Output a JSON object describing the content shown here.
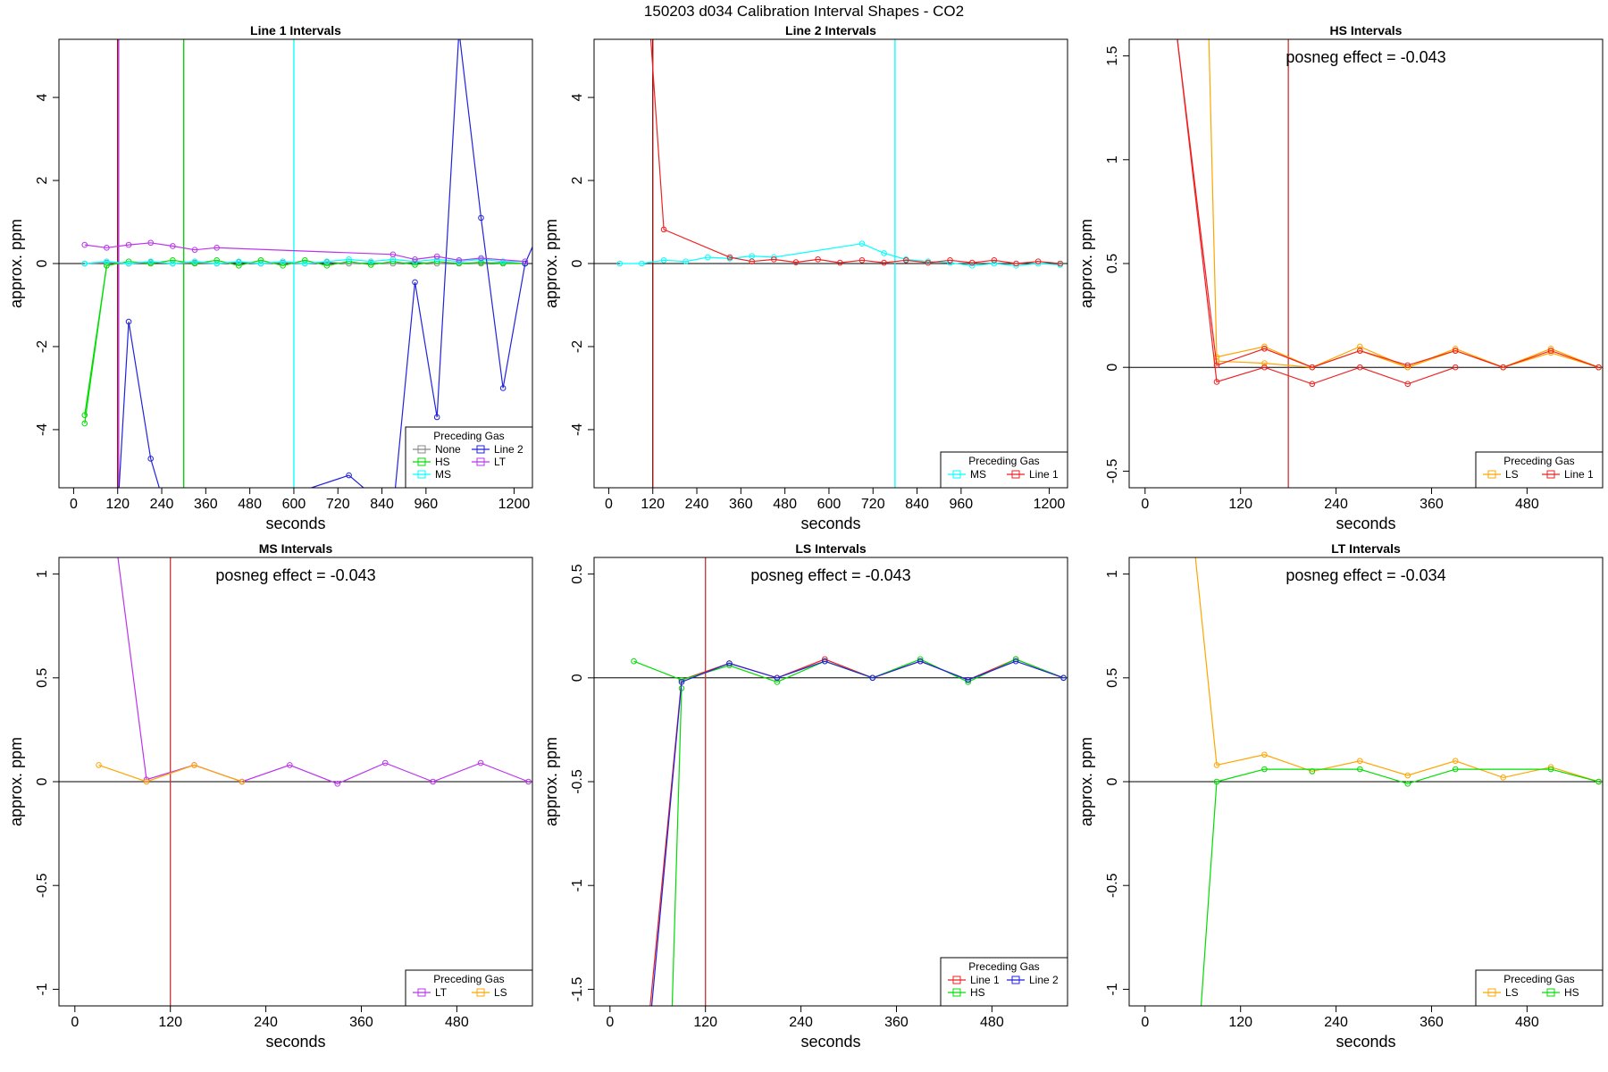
{
  "title": "150203  d034   Calibration Interval Shapes - CO2",
  "chart_data": [
    {
      "type": "line",
      "title": "Line 1 Intervals",
      "xlabel": "seconds",
      "ylabel": "approx. ppm",
      "xlim": [
        -40,
        1250
      ],
      "ylim": [
        -5.4,
        5.4
      ],
      "xticks": [
        0,
        120,
        240,
        360,
        480,
        600,
        720,
        840,
        960,
        1200
      ],
      "yticks": [
        -4,
        -2,
        0,
        2,
        4
      ],
      "hline": 0,
      "vlines": [
        {
          "x": 120,
          "color": "#8b0000"
        },
        {
          "x": 123,
          "color": "#cc44ff"
        },
        {
          "x": 300,
          "color": "#00cc00"
        },
        {
          "x": 600,
          "color": "#00ffff"
        }
      ],
      "series": [
        {
          "name": "None",
          "color": "#888888",
          "x": [
            30,
            90,
            150,
            210,
            270,
            330,
            390,
            450,
            510,
            570,
            630,
            690,
            750,
            810,
            870,
            930,
            990,
            1050,
            1110,
            1170,
            1230
          ],
          "y": [
            0.0,
            0.02,
            0.0,
            0.03,
            0.0,
            0.02,
            0.0,
            0.03,
            0.0,
            0.02,
            0.0,
            0.03,
            0.0,
            0.02,
            0.0,
            0.03,
            0.0,
            0.02,
            0.0,
            0.03,
            0.0
          ]
        },
        {
          "name": "HS",
          "color": "#00dd00",
          "x": [
            30,
            90,
            150,
            210,
            270,
            330,
            390,
            450,
            510,
            570,
            630,
            690,
            750,
            810,
            870,
            930,
            990,
            1050,
            1110,
            1170,
            1230
          ],
          "y": [
            -3.85,
            -0.05,
            0.05,
            0.0,
            0.08,
            0.0,
            0.08,
            -0.05,
            0.08,
            -0.05,
            0.08,
            -0.05,
            0.05,
            -0.03,
            0.05,
            -0.03,
            0.05,
            0.0,
            0.03,
            0.0,
            0.0
          ]
        },
        {
          "name": "HS",
          "color": "#00dd00",
          "x": [
            30,
            90
          ],
          "y": [
            -3.65,
            -0.05
          ]
        },
        {
          "name": "MS",
          "color": "#00ffff",
          "x": [
            30,
            90,
            150,
            210,
            270,
            330,
            390,
            450,
            510,
            570,
            630,
            690,
            750,
            810,
            870,
            930,
            990,
            1050,
            1110,
            1170,
            1230
          ],
          "y": [
            0.0,
            0.05,
            0.0,
            0.05,
            0.0,
            0.05,
            0.0,
            0.05,
            0.0,
            0.05,
            0.0,
            0.05,
            0.1,
            0.05,
            0.1,
            0.05,
            0.1,
            0.05,
            0.1,
            0.05,
            0.05
          ]
        },
        {
          "name": "Line 2",
          "color": "#2222dd",
          "x": [
            120,
            150,
            210,
            270,
            750,
            870,
            930,
            990,
            1050,
            1110,
            1170,
            1230,
            1260
          ],
          "y": [
            -6.0,
            -1.4,
            -4.7,
            -6.5,
            -5.1,
            -6.0,
            -0.45,
            -3.7,
            5.6,
            1.1,
            -3.0,
            0.0,
            0.6
          ]
        },
        {
          "name": "LT",
          "color": "#bb33ee",
          "x": [
            30,
            90,
            150,
            210,
            270,
            330,
            390,
            870,
            930,
            990,
            1050,
            1110,
            1230
          ],
          "y": [
            0.45,
            0.38,
            0.45,
            0.5,
            0.42,
            0.33,
            0.38,
            0.22,
            0.1,
            0.17,
            0.08,
            0.13,
            0.05
          ]
        }
      ],
      "legend": {
        "title": "Preceding Gas",
        "entries": [
          {
            "label": "None",
            "color": "#888888"
          },
          {
            "label": "Line 2",
            "color": "#2222dd"
          },
          {
            "label": "HS",
            "color": "#00dd00"
          },
          {
            "label": "LT",
            "color": "#bb33ee"
          },
          {
            "label": "MS",
            "color": "#00ffff"
          }
        ],
        "columns": 2,
        "position": "bottom-right"
      }
    },
    {
      "type": "line",
      "title": "Line 2 Intervals",
      "xlabel": "seconds",
      "ylabel": "approx. ppm",
      "xlim": [
        -40,
        1250
      ],
      "ylim": [
        -5.4,
        5.4
      ],
      "xticks": [
        0,
        120,
        240,
        360,
        480,
        600,
        720,
        840,
        960,
        1200
      ],
      "yticks": [
        -4,
        -2,
        0,
        2,
        4
      ],
      "hline": 0,
      "vlines": [
        {
          "x": 120,
          "color": "#8b0000"
        },
        {
          "x": 780,
          "color": "#00ffff"
        }
      ],
      "series": [
        {
          "name": "MS",
          "color": "#00ffff",
          "x": [
            30,
            90,
            150,
            210,
            270,
            330,
            390,
            450,
            690,
            750,
            810,
            870,
            930,
            990,
            1050,
            1110,
            1170,
            1230
          ],
          "y": [
            0.0,
            0.0,
            0.08,
            0.05,
            0.15,
            0.12,
            0.18,
            0.15,
            0.48,
            0.25,
            0.1,
            0.05,
            0.02,
            -0.05,
            0.0,
            -0.05,
            0.0,
            -0.03
          ]
        },
        {
          "name": "Line 1",
          "color": "#ee2222",
          "x": [
            110,
            150,
            330,
            390,
            450,
            510,
            570,
            630,
            690,
            750,
            810,
            870,
            930,
            990,
            1050,
            1110,
            1170,
            1230
          ],
          "y": [
            6.0,
            0.82,
            0.15,
            0.05,
            0.1,
            0.03,
            0.1,
            0.02,
            0.08,
            0.02,
            0.08,
            0.02,
            0.08,
            0.02,
            0.08,
            0.0,
            0.05,
            0.0
          ]
        }
      ],
      "legend": {
        "title": "Preceding Gas",
        "entries": [
          {
            "label": "MS",
            "color": "#00ffff"
          },
          {
            "label": "Line 1",
            "color": "#ee2222"
          }
        ],
        "columns": 2,
        "position": "bottom-right"
      }
    },
    {
      "type": "line",
      "title": "HS Intervals",
      "xlabel": "seconds",
      "ylabel": "approx. ppm",
      "annotation": "posneg effect = -0.043",
      "xlim": [
        -20,
        575
      ],
      "ylim": [
        -0.58,
        1.58
      ],
      "xticks": [
        0,
        120,
        240,
        360,
        480
      ],
      "yticks": [
        -0.5,
        0.0,
        0.5,
        1.0,
        1.5
      ],
      "hline": 0,
      "vlines": [
        {
          "x": 180,
          "color": "#cc3333"
        }
      ],
      "series": [
        {
          "name": "LS",
          "color": "#ffa500",
          "x": [
            80,
            90,
            150,
            210,
            270,
            330,
            390,
            450,
            510,
            570
          ],
          "y": [
            1.6,
            0.05,
            0.1,
            0.0,
            0.1,
            0.0,
            0.09,
            0.0,
            0.09,
            0.0
          ]
        },
        {
          "name": "LS",
          "color": "#ffa500",
          "x": [
            90,
            150,
            210,
            270,
            330,
            390,
            450,
            510,
            570
          ],
          "y": [
            0.03,
            0.02,
            0.0,
            0.08,
            0.0,
            0.08,
            0.0,
            0.07,
            0.0
          ]
        },
        {
          "name": "Line 1",
          "color": "#ee2222",
          "x": [
            40,
            90,
            150,
            210,
            270,
            330,
            390,
            450,
            510,
            570
          ],
          "y": [
            1.6,
            0.01,
            0.09,
            0.0,
            0.08,
            0.01,
            0.08,
            0.0,
            0.08,
            0.0
          ]
        },
        {
          "name": "Line 1",
          "color": "#ee2222",
          "x": [
            40,
            90,
            150,
            210,
            270,
            330,
            390
          ],
          "y": [
            1.6,
            -0.07,
            0.0,
            -0.08,
            0.0,
            -0.08,
            0.0
          ]
        }
      ],
      "legend": {
        "title": "Preceding Gas",
        "entries": [
          {
            "label": "LS",
            "color": "#ffa500"
          },
          {
            "label": "Line 1",
            "color": "#ee2222"
          }
        ],
        "columns": 2,
        "position": "bottom-right"
      }
    },
    {
      "type": "line",
      "title": "MS Intervals",
      "xlabel": "seconds",
      "ylabel": "approx. ppm",
      "annotation": "posneg effect = -0.043",
      "xlim": [
        -20,
        575
      ],
      "ylim": [
        -1.08,
        1.08
      ],
      "xticks": [
        0,
        120,
        240,
        360,
        480
      ],
      "yticks": [
        -1.0,
        -0.5,
        0.0,
        0.5,
        1.0
      ],
      "hline": 0,
      "vlines": [
        {
          "x": 120,
          "color": "#cc3333"
        }
      ],
      "series": [
        {
          "name": "LT",
          "color": "#bb33ee",
          "x": [
            50,
            90,
            150,
            210,
            270,
            330,
            390,
            450,
            510,
            570
          ],
          "y": [
            1.2,
            0.01,
            0.08,
            0.0,
            0.08,
            -0.01,
            0.09,
            0.0,
            0.09,
            0.0
          ]
        },
        {
          "name": "LS",
          "color": "#ffa500",
          "x": [
            30,
            90,
            150,
            210
          ],
          "y": [
            0.08,
            0.0,
            0.08,
            0.0
          ]
        }
      ],
      "legend": {
        "title": "Preceding Gas",
        "entries": [
          {
            "label": "LT",
            "color": "#bb33ee"
          },
          {
            "label": "LS",
            "color": "#ffa500"
          }
        ],
        "columns": 2,
        "position": "bottom-right"
      }
    },
    {
      "type": "line",
      "title": "LS Intervals",
      "xlabel": "seconds",
      "ylabel": "approx. ppm",
      "annotation": "posneg effect = -0.043",
      "xlim": [
        -20,
        575
      ],
      "ylim": [
        -1.58,
        0.58
      ],
      "xticks": [
        0,
        120,
        240,
        360,
        480
      ],
      "yticks": [
        -1.5,
        -1.0,
        -0.5,
        0.0,
        0.5
      ],
      "hline": 0,
      "vlines": [
        {
          "x": 120,
          "color": "#cc3333"
        }
      ],
      "series": [
        {
          "name": "Line 1",
          "color": "#ee2222",
          "x": [
            50,
            90,
            150,
            210,
            270,
            330,
            390,
            450,
            510,
            570
          ],
          "y": [
            -1.6,
            -0.01,
            0.07,
            0.0,
            0.09,
            0.0,
            0.08,
            -0.01,
            0.09,
            0.0
          ]
        },
        {
          "name": "HS",
          "color": "#00dd00",
          "x": [
            30,
            90,
            150,
            210,
            270,
            330,
            390,
            450,
            510,
            570
          ],
          "y": [
            0.08,
            -0.01,
            0.06,
            -0.02,
            0.08,
            0.0,
            0.09,
            -0.02,
            0.09,
            0.0
          ]
        },
        {
          "name": "HS",
          "color": "#00dd00",
          "x": [
            78,
            90
          ],
          "y": [
            -1.6,
            -0.05
          ]
        },
        {
          "name": "Line 2",
          "color": "#2222dd",
          "x": [
            52,
            90,
            150,
            210,
            270,
            330,
            390,
            450,
            510,
            570
          ],
          "y": [
            -1.6,
            -0.02,
            0.07,
            0.0,
            0.08,
            0.0,
            0.08,
            -0.01,
            0.08,
            0.0
          ]
        }
      ],
      "legend": {
        "title": "Preceding Gas",
        "entries": [
          {
            "label": "Line 1",
            "color": "#ee2222"
          },
          {
            "label": "Line 2",
            "color": "#2222dd"
          },
          {
            "label": "HS",
            "color": "#00dd00"
          }
        ],
        "columns": 2,
        "position": "bottom-right"
      }
    },
    {
      "type": "line",
      "title": "LT Intervals",
      "xlabel": "seconds",
      "ylabel": "approx. ppm",
      "annotation": "posneg effect = -0.034",
      "xlim": [
        -20,
        575
      ],
      "ylim": [
        -1.08,
        1.08
      ],
      "xticks": [
        0,
        120,
        240,
        360,
        480
      ],
      "yticks": [
        -1.0,
        -0.5,
        0.0,
        0.5,
        1.0
      ],
      "hline": 0,
      "vlines": [],
      "series": [
        {
          "name": "LS",
          "color": "#ffa500",
          "x": [
            60,
            90,
            150,
            210,
            270,
            330,
            390,
            450,
            510,
            570
          ],
          "y": [
            1.2,
            0.08,
            0.13,
            0.05,
            0.1,
            0.03,
            0.1,
            0.02,
            0.07,
            0.0
          ]
        },
        {
          "name": "HS",
          "color": "#00dd00",
          "x": [
            70,
            90,
            150,
            270,
            330,
            390,
            510,
            570
          ],
          "y": [
            -1.1,
            0.0,
            0.06,
            0.06,
            -0.01,
            0.06,
            0.06,
            0.0
          ]
        },
        {
          "name": "HS",
          "color": "#00dd00",
          "x": [
            210
          ],
          "y": [
            0.05
          ]
        }
      ],
      "legend": {
        "title": "Preceding Gas",
        "entries": [
          {
            "label": "LS",
            "color": "#ffa500"
          },
          {
            "label": "HS",
            "color": "#00dd00"
          }
        ],
        "columns": 2,
        "position": "bottom-right"
      }
    }
  ]
}
